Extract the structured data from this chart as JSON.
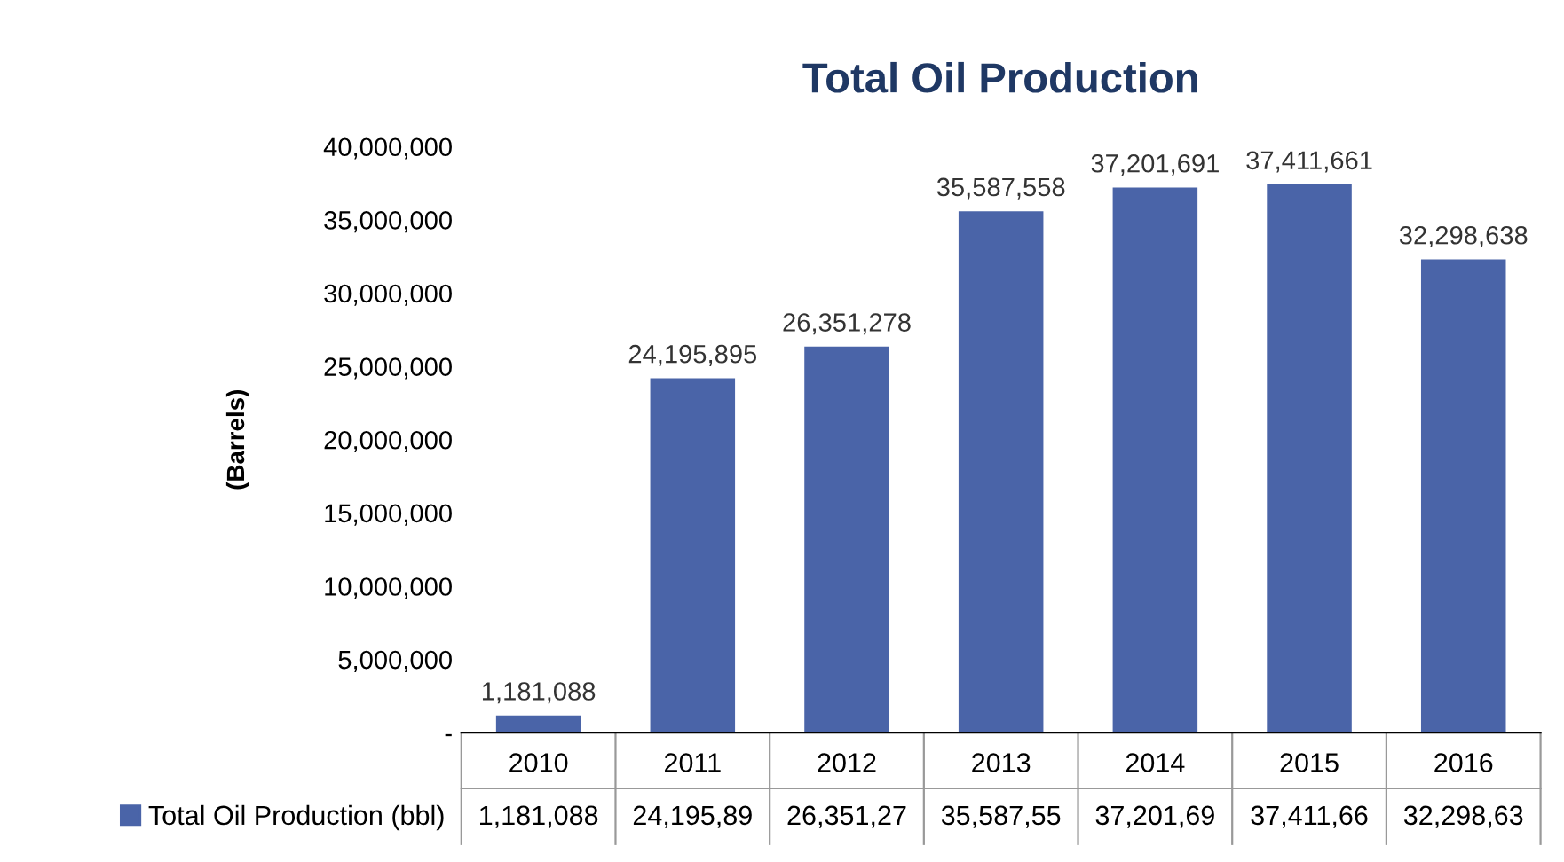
{
  "chart_data": {
    "type": "bar",
    "title": "Total Oil Production",
    "ylabel": "(Barrels)",
    "categories": [
      "2010",
      "2011",
      "2012",
      "2013",
      "2014",
      "2015",
      "2016"
    ],
    "series": [
      {
        "name": "Total Oil Production (bbl)",
        "color": "#4a64a8",
        "values": [
          1181088,
          24195895,
          26351278,
          35587558,
          37201691,
          37411661,
          32298638
        ],
        "value_labels": [
          "1,181,088",
          "24,195,895",
          "26,351,278",
          "35,587,558",
          "37,201,691",
          "37,411,661",
          "32,298,638"
        ]
      }
    ],
    "annotations": [
      "1,181,088",
      "24,195,89",
      "26,351,27",
      "35,587,55",
      "37,201,69",
      "37,411,66",
      "32,298,63"
    ],
    "ylim": [
      0,
      40000000
    ],
    "yticks": [
      {
        "value": 0,
        "label": "-"
      },
      {
        "value": 5000000,
        "label": "5,000,000"
      },
      {
        "value": 10000000,
        "label": "10,000,000"
      },
      {
        "value": 15000000,
        "label": "15,000,000"
      },
      {
        "value": 20000000,
        "label": "20,000,000"
      },
      {
        "value": 25000000,
        "label": "25,000,000"
      },
      {
        "value": 30000000,
        "label": "30,000,000"
      },
      {
        "value": 35000000,
        "label": "35,000,000"
      },
      {
        "value": 40000000,
        "label": "40,000,000"
      }
    ],
    "legend": "bottom",
    "grid": false
  }
}
